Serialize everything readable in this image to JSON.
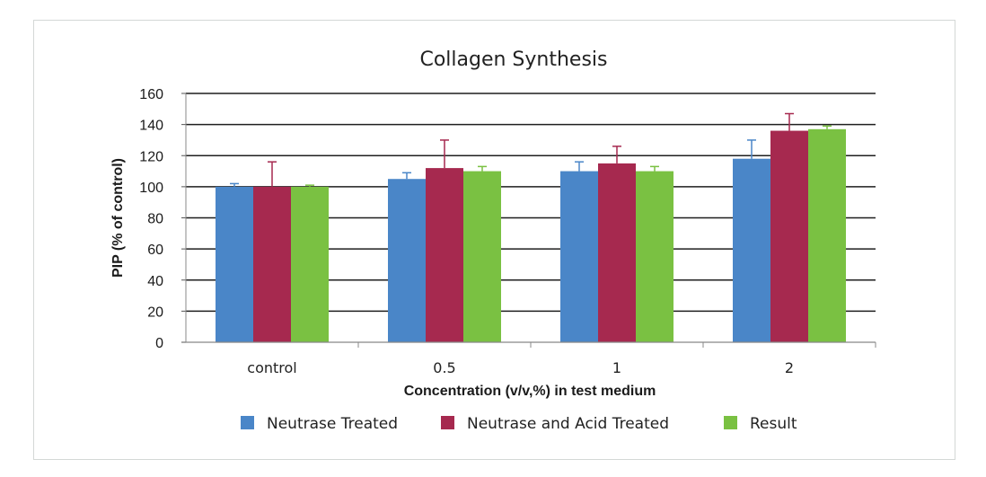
{
  "chart_data": {
    "type": "bar",
    "title": "Collagen Synthesis",
    "xlabel": "Concentration (v/v,%) in test medium",
    "ylabel": "PIP (% of control)",
    "categories": [
      "control",
      "0.5",
      "1",
      "2"
    ],
    "ylim": [
      0,
      160
    ],
    "yticks": [
      0,
      20,
      40,
      60,
      80,
      100,
      120,
      140,
      160
    ],
    "grid": true,
    "legend_position": "bottom",
    "series": [
      {
        "name": "Neutrase Treated",
        "color": "#4a86c8",
        "values": [
          100,
          105,
          110,
          118
        ],
        "errors": [
          2,
          4,
          6,
          12
        ]
      },
      {
        "name": "Neutrase and Acid Treated",
        "color": "#a6294f",
        "values": [
          100,
          112,
          115,
          136
        ],
        "errors": [
          16,
          18,
          11,
          11
        ]
      },
      {
        "name": "Result",
        "color": "#7ac142",
        "values": [
          100,
          110,
          110,
          137
        ],
        "errors": [
          1,
          3,
          3,
          2
        ]
      }
    ]
  }
}
